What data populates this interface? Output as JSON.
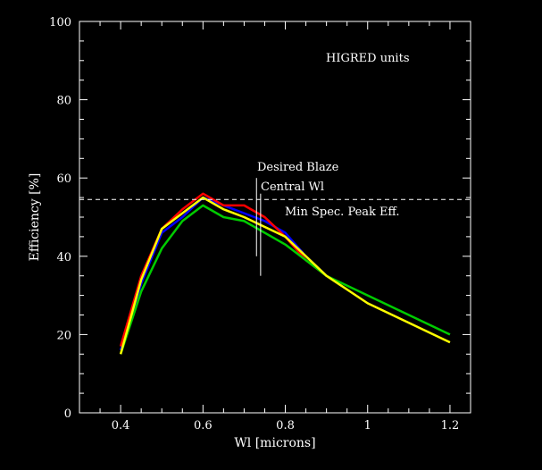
{
  "chart_data": {
    "type": "line",
    "title": "",
    "xlabel": "Wl [microns]",
    "ylabel": "Efficiency [%]",
    "xlim": [
      0.3,
      1.25
    ],
    "ylim": [
      0,
      100
    ],
    "x_ticks": [
      {
        "value": 0.4,
        "label": "0.4"
      },
      {
        "value": 0.6,
        "label": "0.6"
      },
      {
        "value": 0.8,
        "label": "0.8"
      },
      {
        "value": 1.0,
        "label": "1"
      },
      {
        "value": 1.2,
        "label": "1.2"
      }
    ],
    "y_ticks": [
      {
        "value": 0,
        "label": "0"
      },
      {
        "value": 20,
        "label": "20"
      },
      {
        "value": 40,
        "label": "40"
      },
      {
        "value": 60,
        "label": "60"
      },
      {
        "value": 80,
        "label": "80"
      },
      {
        "value": 100,
        "label": "100"
      }
    ],
    "grid": false,
    "background": "#000000",
    "axis_color": "#ffffff",
    "series": [
      {
        "color": "#0000ff",
        "x": [
          0.4,
          0.45,
          0.5,
          0.55,
          0.6,
          0.65,
          0.7,
          0.75,
          0.8,
          0.85,
          0.9
        ],
        "y": [
          16,
          33,
          46,
          50,
          55,
          53,
          51,
          49,
          46,
          40,
          35
        ]
      },
      {
        "color": "#ff0000",
        "x": [
          0.4,
          0.45,
          0.5,
          0.55,
          0.6,
          0.65,
          0.7,
          0.75,
          0.8,
          0.85,
          0.9
        ],
        "y": [
          17,
          35,
          47,
          52,
          56,
          53,
          53,
          50,
          45,
          39,
          35
        ]
      },
      {
        "color": "#00cc00",
        "x": [
          0.4,
          0.45,
          0.5,
          0.55,
          0.6,
          0.65,
          0.7,
          0.8,
          0.9,
          1.0,
          1.1,
          1.2
        ],
        "y": [
          15,
          31,
          42,
          49,
          53,
          50,
          49,
          43,
          35,
          30,
          25,
          20
        ]
      },
      {
        "color": "#ffff00",
        "x": [
          0.4,
          0.45,
          0.5,
          0.55,
          0.6,
          0.65,
          0.7,
          0.8,
          0.9,
          1.0,
          1.1,
          1.2
        ],
        "y": [
          15,
          34,
          47,
          51,
          55,
          52,
          50,
          45,
          35,
          28,
          23,
          18
        ]
      }
    ],
    "min_peak_line": {
      "y": 54.5,
      "label": "Min Spec. Peak Eff."
    },
    "blaze_line": {
      "x": 0.73,
      "y_range": [
        40,
        60
      ],
      "label": "Desired Blaze"
    },
    "central_line": {
      "x": 0.74,
      "y_range": [
        35,
        56
      ],
      "label": "Central Wl"
    },
    "units_label": "HIGRED units"
  }
}
